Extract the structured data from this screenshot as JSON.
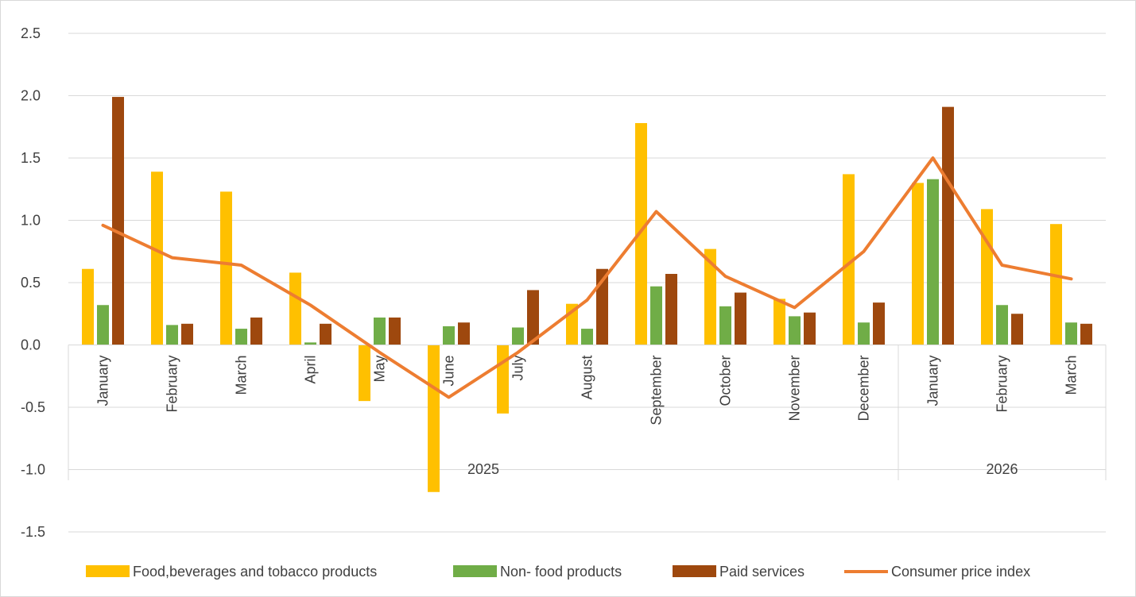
{
  "chart_data": {
    "type": "bar",
    "title": "",
    "xlabel": "",
    "ylabel": "",
    "ylim": [
      -1.5,
      2.5
    ],
    "yticks": [
      "2.5",
      "2.0",
      "1.5",
      "1.0",
      "0.5",
      "0.0",
      "-0.5",
      "-1.0",
      "-1.5"
    ],
    "ytick_values": [
      2.5,
      2.0,
      1.5,
      1.0,
      0.5,
      0.0,
      -0.5,
      -1.0,
      -1.5
    ],
    "grid": true,
    "legend_position": "bottom",
    "categories": [
      "January",
      "February",
      "March",
      "April",
      "May",
      "June",
      "July",
      "August",
      "September",
      "October",
      "November",
      "December",
      "January",
      "February",
      "March"
    ],
    "groups": [
      {
        "label": "2025",
        "count": 12
      },
      {
        "label": "2026",
        "count": 3
      }
    ],
    "series": [
      {
        "name": "Food,beverages and tobacco products",
        "kind": "bar",
        "color": "#FFC000",
        "values": [
          0.61,
          1.39,
          1.23,
          0.58,
          -0.45,
          -1.18,
          -0.55,
          0.33,
          1.78,
          0.77,
          0.37,
          1.37,
          1.3,
          1.09,
          0.97
        ]
      },
      {
        "name": "Non- food products",
        "kind": "bar",
        "color": "#70AD47",
        "values": [
          0.32,
          0.16,
          0.13,
          0.02,
          0.22,
          0.15,
          0.14,
          0.13,
          0.47,
          0.31,
          0.23,
          0.18,
          1.33,
          0.32,
          0.18
        ]
      },
      {
        "name": "Paid services",
        "kind": "bar",
        "color": "#9E480E",
        "values": [
          1.99,
          0.17,
          0.22,
          0.17,
          0.22,
          0.18,
          0.44,
          0.61,
          0.57,
          0.42,
          0.26,
          0.34,
          1.91,
          0.25,
          0.17
        ]
      },
      {
        "name": "Consumer price index",
        "kind": "line",
        "color": "#ED7D31",
        "values": [
          0.96,
          0.7,
          0.64,
          0.32,
          -0.06,
          -0.42,
          -0.06,
          0.36,
          1.07,
          0.55,
          0.3,
          0.75,
          1.5,
          0.64,
          0.53
        ]
      }
    ]
  }
}
